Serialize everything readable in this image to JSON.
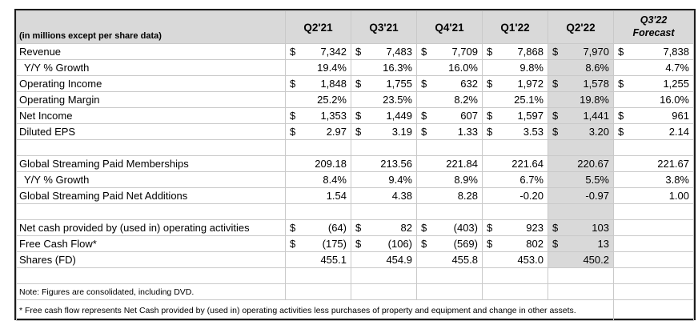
{
  "table": {
    "corner_label": "(in millions except per share data)",
    "columns": [
      "Q2'21",
      "Q3'21",
      "Q4'21",
      "Q1'22",
      "Q2'22"
    ],
    "forecast_column": {
      "line1": "Q3'22",
      "line2": "Forecast"
    },
    "currency_symbol": "$",
    "highlighted_column": "Q2'22",
    "highlight_color": "#d9d9d9",
    "rows": [
      {
        "label": "Revenue",
        "type": "dollar",
        "indent": false,
        "shaded": true,
        "values": [
          "7,342",
          "7,483",
          "7,709",
          "7,868",
          "7,970",
          "7,838"
        ]
      },
      {
        "label": "Y/Y % Growth",
        "type": "percent",
        "indent": true,
        "shaded": true,
        "values": [
          "19.4%",
          "16.3%",
          "16.0%",
          "9.8%",
          "8.6%",
          "4.7%"
        ]
      },
      {
        "label": "Operating Income",
        "type": "dollar",
        "indent": false,
        "shaded": true,
        "values": [
          "1,848",
          "1,755",
          "632",
          "1,972",
          "1,578",
          "1,255"
        ]
      },
      {
        "label": "Operating Margin",
        "type": "percent",
        "indent": false,
        "shaded": true,
        "values": [
          "25.2%",
          "23.5%",
          "8.2%",
          "25.1%",
          "19.8%",
          "16.0%"
        ]
      },
      {
        "label": "Net Income",
        "type": "dollar",
        "indent": false,
        "shaded": true,
        "values": [
          "1,353",
          "1,449",
          "607",
          "1,597",
          "1,441",
          "961"
        ]
      },
      {
        "label": "Diluted EPS",
        "type": "dollar",
        "indent": false,
        "shaded": true,
        "values": [
          "2.97",
          "3.19",
          "1.33",
          "3.53",
          "3.20",
          "2.14"
        ]
      },
      {
        "label": "",
        "type": "blank",
        "indent": false,
        "shaded": true,
        "values": [
          "",
          "",
          "",
          "",
          "",
          ""
        ]
      },
      {
        "label": "Global Streaming Paid Memberships",
        "type": "number",
        "indent": false,
        "shaded": true,
        "values": [
          "209.18",
          "213.56",
          "221.84",
          "221.64",
          "220.67",
          "221.67"
        ]
      },
      {
        "label": "Y/Y % Growth",
        "type": "percent",
        "indent": true,
        "shaded": true,
        "values": [
          "8.4%",
          "9.4%",
          "8.9%",
          "6.7%",
          "5.5%",
          "3.8%"
        ]
      },
      {
        "label": "Global Streaming Paid Net Additions",
        "type": "number",
        "indent": false,
        "shaded": true,
        "values": [
          "1.54",
          "4.38",
          "8.28",
          "-0.20",
          "-0.97",
          "1.00"
        ]
      },
      {
        "label": "",
        "type": "blank",
        "indent": false,
        "shaded": true,
        "values": [
          "",
          "",
          "",
          "",
          "",
          ""
        ]
      },
      {
        "label": "Net cash provided by (used in) operating activities",
        "type": "dollar",
        "indent": false,
        "shaded": true,
        "values": [
          "(64)",
          "82",
          "(403)",
          "923",
          "103",
          ""
        ]
      },
      {
        "label": "Free Cash Flow*",
        "type": "dollar",
        "indent": false,
        "shaded": true,
        "values": [
          "(175)",
          "(106)",
          "(569)",
          "802",
          "13",
          ""
        ]
      },
      {
        "label": "Shares (FD)",
        "type": "number",
        "indent": false,
        "shaded": true,
        "values": [
          "455.1",
          "454.9",
          "455.8",
          "453.0",
          "450.2",
          ""
        ]
      },
      {
        "label": "",
        "type": "blank",
        "indent": false,
        "shaded": false,
        "values": [
          "",
          "",
          "",
          "",
          "",
          ""
        ]
      },
      {
        "label": "Note: Figures are consolidated, including DVD.",
        "type": "note",
        "indent": false,
        "shaded": false,
        "values": [
          "",
          "",
          "",
          "",
          "",
          ""
        ]
      },
      {
        "label": "* Free cash flow represents Net Cash provided by (used in) operating activities less purchases of property and equipment and change in other assets.",
        "type": "footnote",
        "indent": false,
        "shaded": false,
        "values": [
          ""
        ]
      }
    ]
  }
}
